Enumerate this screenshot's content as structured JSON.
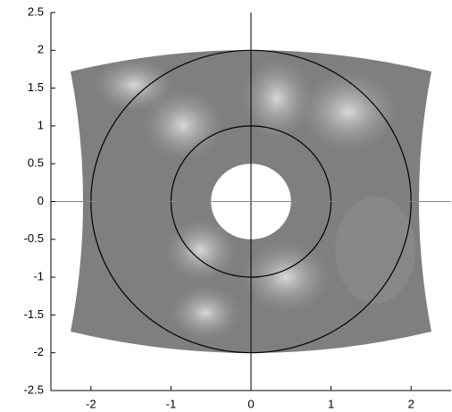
{
  "chart_data": {
    "type": "circles",
    "xlim": [
      -2.5,
      2.5
    ],
    "ylim": [
      -2.5,
      2.5
    ],
    "xticks": [
      -2,
      -1,
      0,
      1,
      2
    ],
    "yticks": [
      -2.5,
      -2,
      -1.5,
      -1,
      -0.5,
      0,
      0.5,
      1,
      1.5,
      2,
      2.5
    ],
    "circles": [
      2,
      1,
      0.5
    ],
    "reference_lines": {
      "x": 0,
      "y": 0
    },
    "color": "#000000"
  }
}
